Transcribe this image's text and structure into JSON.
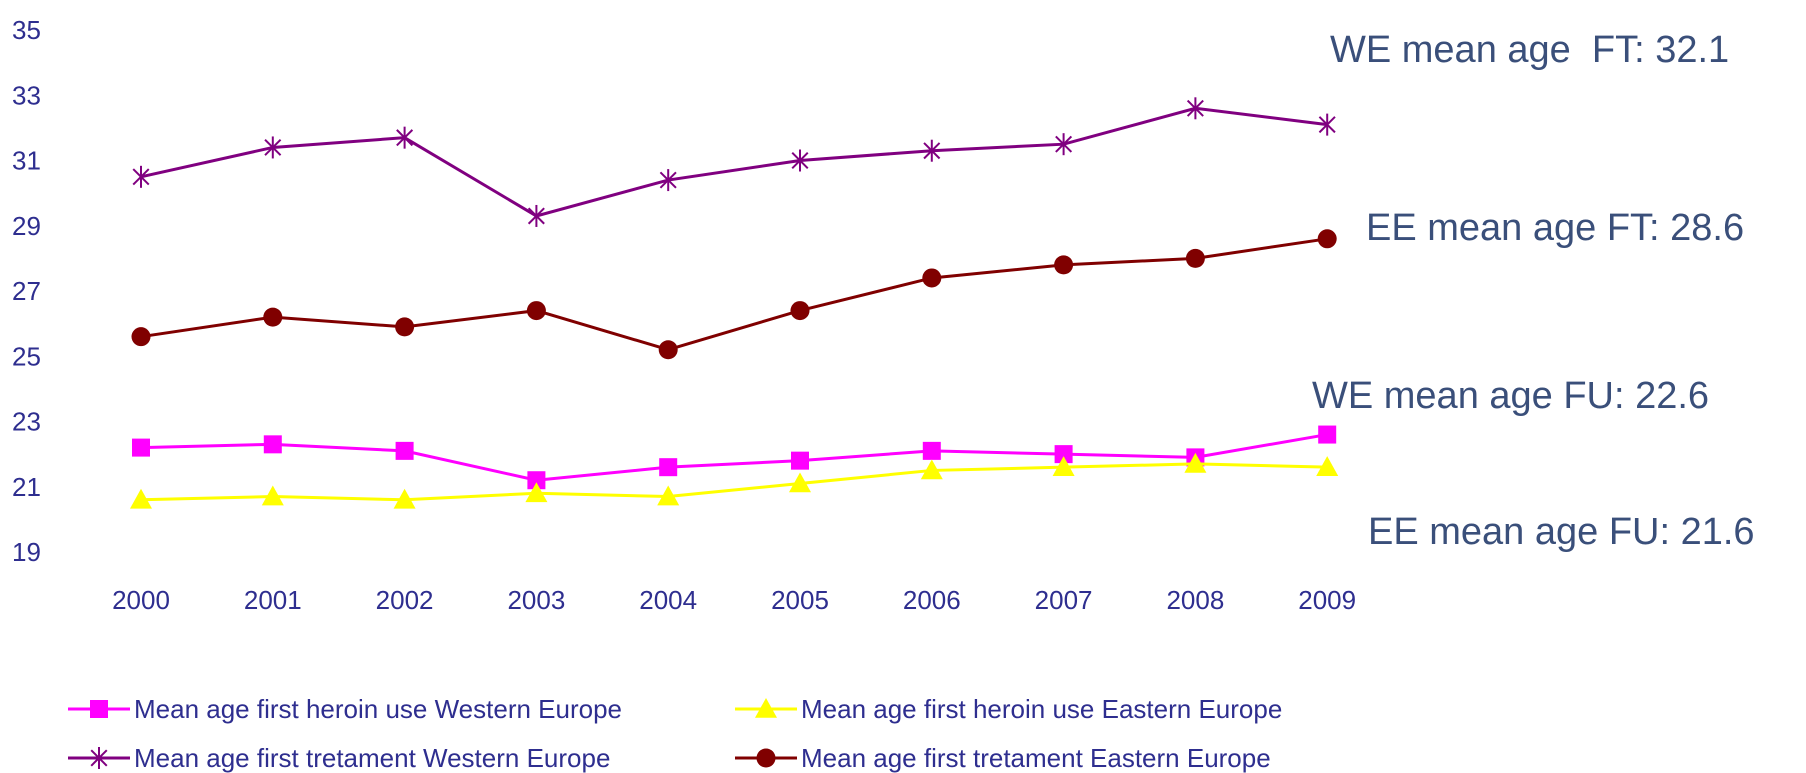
{
  "chart_data": {
    "type": "line",
    "x": [
      "2000",
      "2001",
      "2002",
      "2003",
      "2004",
      "2005",
      "2006",
      "2007",
      "2008",
      "2009"
    ],
    "ylim": [
      19,
      35
    ],
    "yticks": [
      "19",
      "21",
      "23",
      "25",
      "27",
      "29",
      "31",
      "33",
      "35"
    ],
    "grid": false,
    "legend_position": "bottom",
    "series": [
      {
        "name": "Mean age first heroin use Western Europe",
        "color": "#ff00ff",
        "marker": "square",
        "values": [
          22.2,
          22.3,
          22.1,
          21.2,
          21.6,
          21.8,
          22.1,
          22.0,
          21.9,
          22.6
        ]
      },
      {
        "name": "Mean age first heroin use  Eastern Europe",
        "color": "#ffff00",
        "marker": "triangle",
        "values": [
          20.6,
          20.7,
          20.6,
          20.8,
          20.7,
          21.1,
          21.5,
          21.6,
          21.7,
          21.6
        ]
      },
      {
        "name": "Mean age first tretament Western Europe",
        "color": "#800080",
        "marker": "star",
        "values": [
          30.5,
          31.4,
          31.7,
          29.3,
          30.4,
          31.0,
          31.3,
          31.5,
          32.6,
          32.1
        ]
      },
      {
        "name": "Mean age first tretament Eastern Europe",
        "color": "#800000",
        "marker": "circle",
        "values": [
          25.6,
          26.2,
          25.9,
          26.4,
          25.2,
          26.4,
          27.4,
          27.8,
          28.0,
          28.6
        ]
      }
    ],
    "annotations": [
      {
        "text": "WE mean age  FT: 32.1"
      },
      {
        "text": "EE mean age FT: 28.6"
      },
      {
        "text": "WE mean age FU: 22.6"
      },
      {
        "text": "EE mean age FU: 21.6"
      }
    ]
  }
}
